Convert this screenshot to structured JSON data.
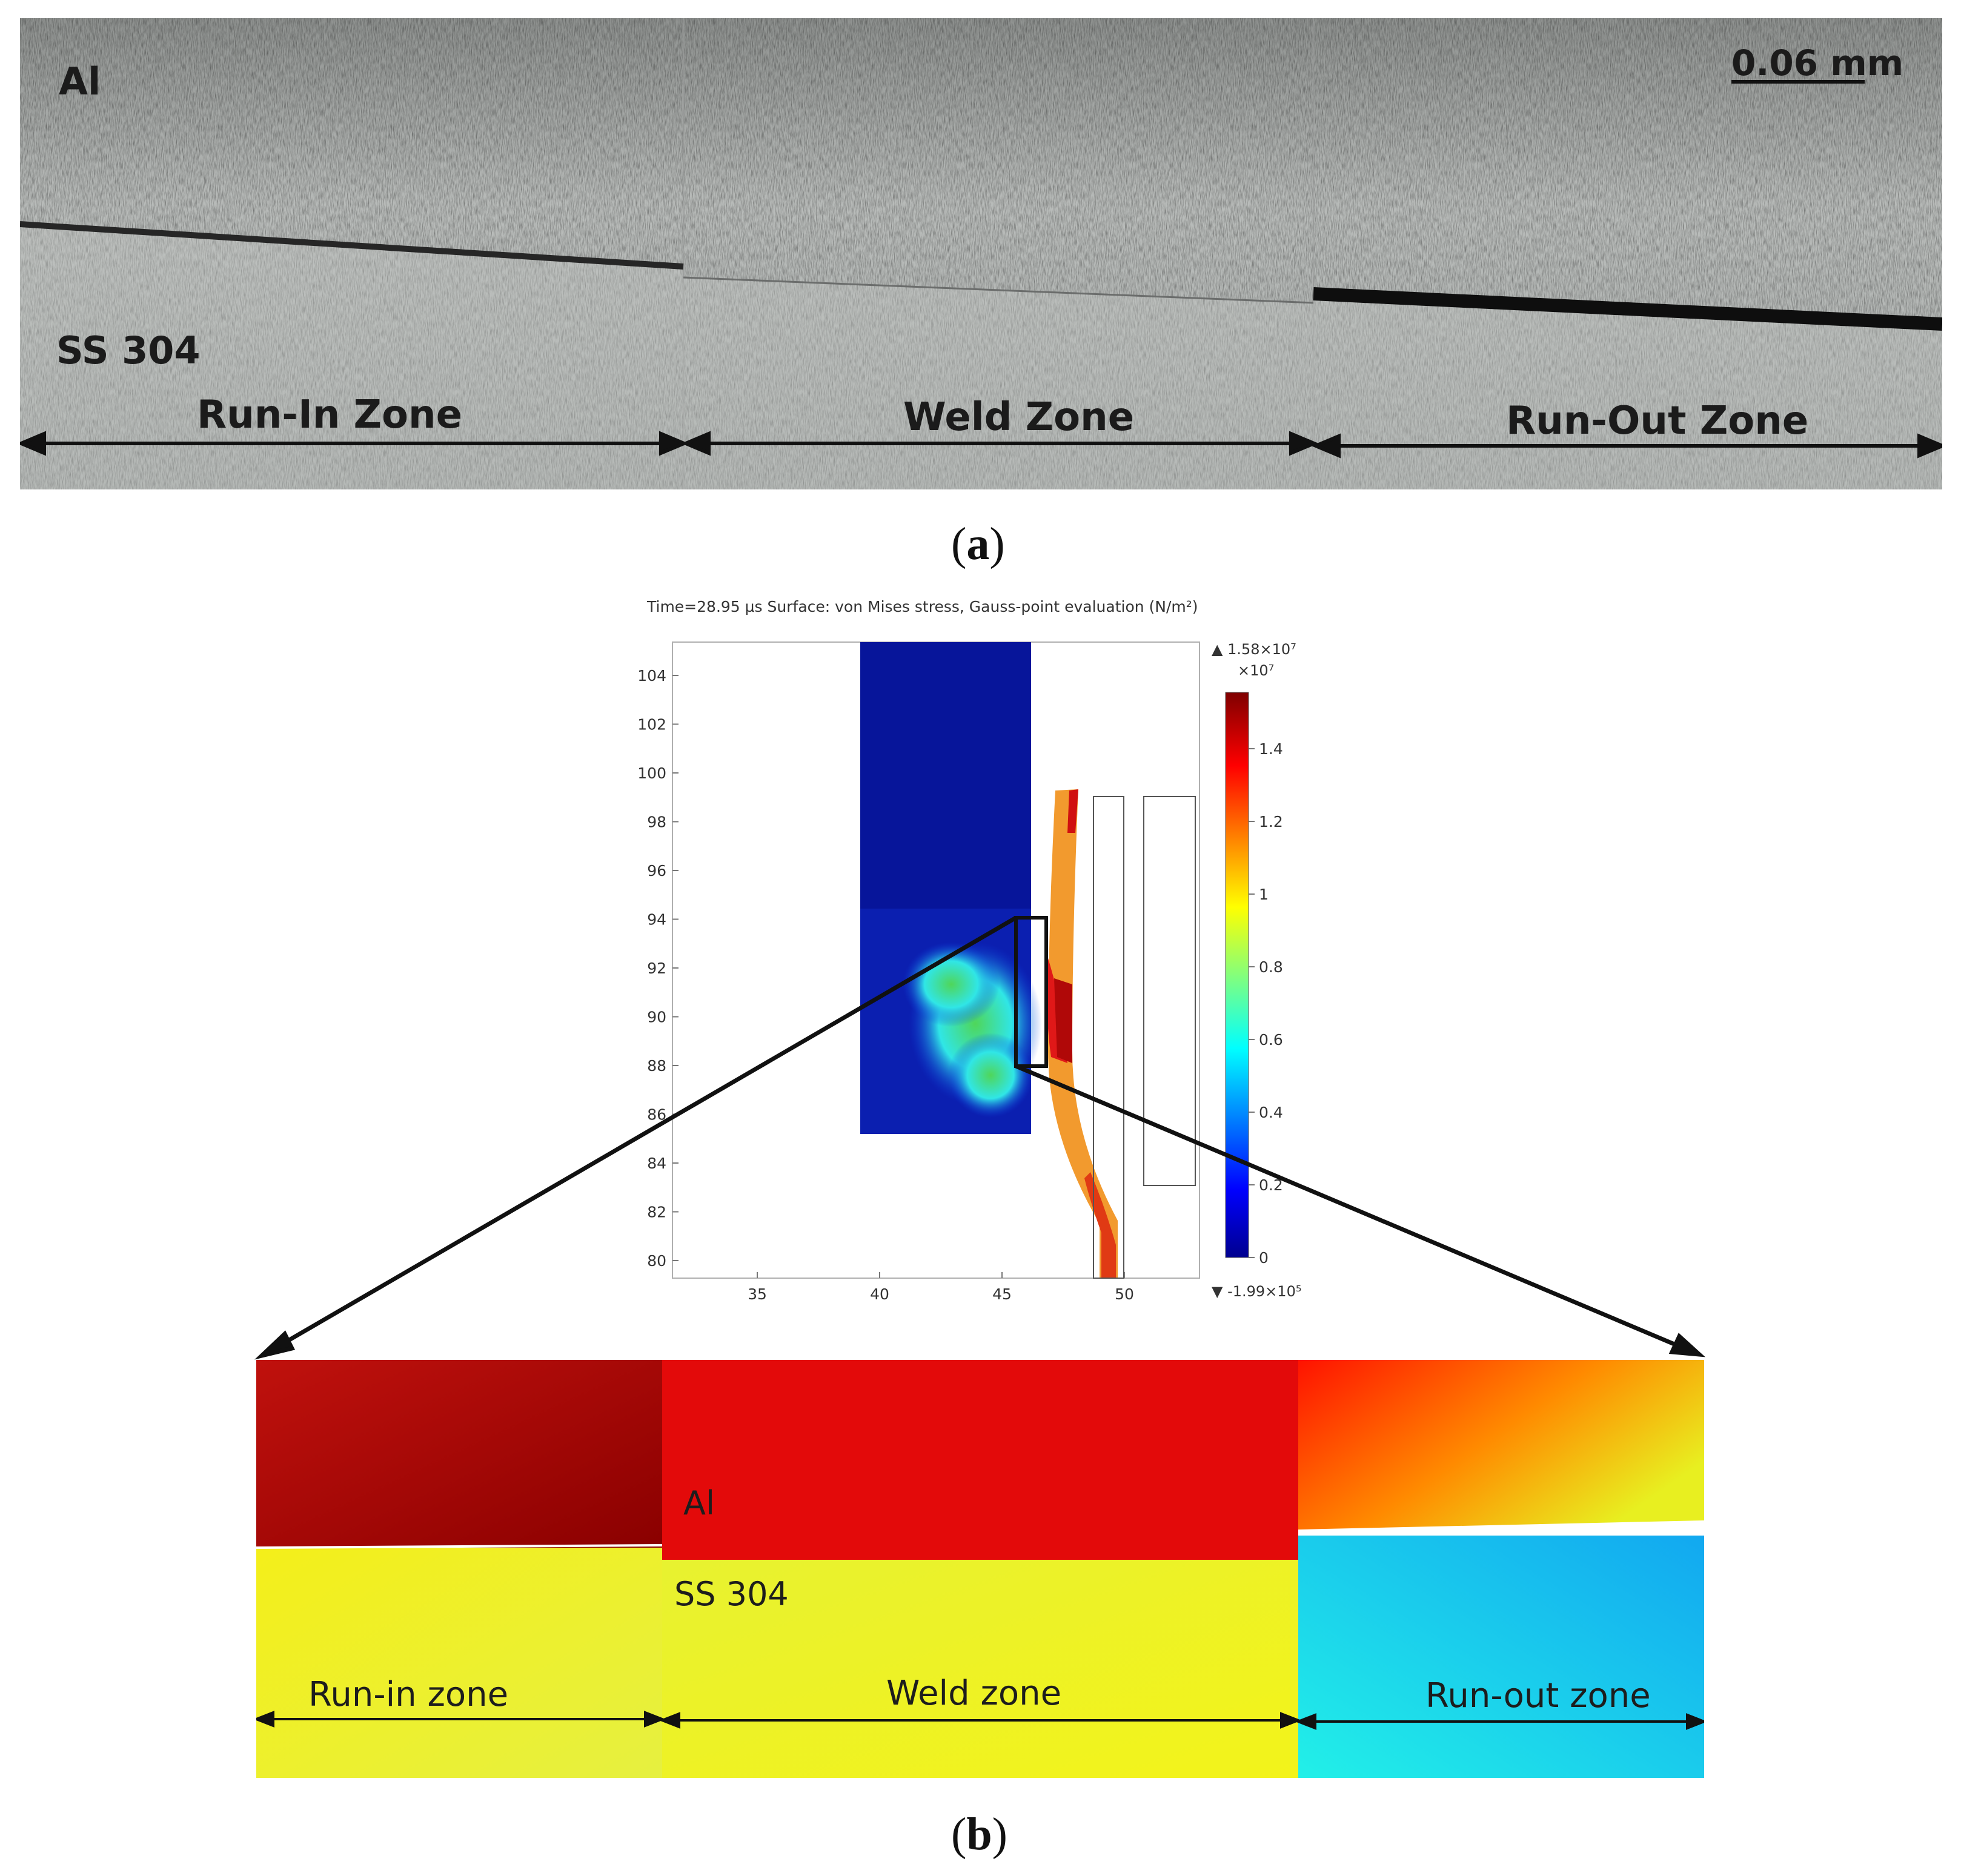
{
  "panel_a": {
    "materials": {
      "top": "Al",
      "bottom": "SS 304"
    },
    "scale_bar": "0.06 mm",
    "zones": [
      "Run-In Zone",
      "Weld Zone",
      "Run-Out Zone"
    ],
    "caption": "a"
  },
  "panel_b": {
    "plot_title": "Time=28.95 µs   Surface: von Mises stress, Gauss-point evaluation (N/m²)",
    "x_ticks": [
      "35",
      "40",
      "45",
      "50"
    ],
    "y_ticks": [
      "104",
      "102",
      "100",
      "98",
      "96",
      "94",
      "92",
      "90",
      "88",
      "86",
      "84",
      "82",
      "80"
    ],
    "colorbar": {
      "max": "▲ 1.58×10⁷",
      "multiplier": "×10⁷",
      "ticks": [
        "1.4",
        "1.2",
        "1",
        "0.8",
        "0.6",
        "0.4",
        "0.2",
        "0"
      ],
      "min": "▼ -1.99×10⁵"
    },
    "zoom": {
      "materials": {
        "top": "Al",
        "bottom": "SS 304"
      },
      "zones": [
        "Run-in zone",
        "Weld zone",
        "Run-out zone"
      ]
    },
    "caption": "b"
  },
  "colors": {
    "jet_low": "#00008f",
    "jet_high": "#7f0000",
    "arrow": "#111111"
  }
}
